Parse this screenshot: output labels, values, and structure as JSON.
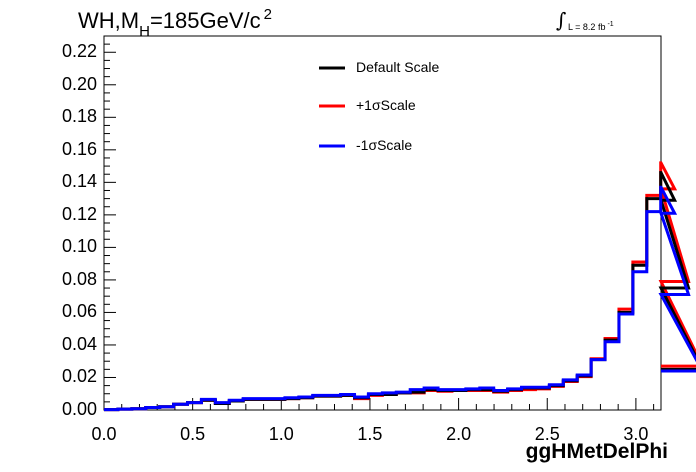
{
  "chart_data": {
    "type": "line",
    "title": "WH,M",
    "title_sub": "H",
    "title_rest": "=185GeV/c",
    "title_sup": "2",
    "lumi_symbol": "∫",
    "lumi_text": "L = 8.2 fb",
    "lumi_sup": "-1",
    "xlabel": "ggHMetDelPhi",
    "ylabel": "",
    "xlim": [
      0,
      3.1416
    ],
    "ylim": [
      0,
      0.23
    ],
    "bin_width": 0.0785,
    "x_ticks": [
      "0.0",
      "0.5",
      "1.0",
      "1.5",
      "2.0",
      "2.5",
      "3.0"
    ],
    "x_tick_values": [
      0.0,
      0.5,
      1.0,
      1.5,
      2.0,
      2.5,
      3.0
    ],
    "y_ticks": [
      "0.00",
      "0.02",
      "0.04",
      "0.06",
      "0.08",
      "0.10",
      "0.12",
      "0.14",
      "0.16",
      "0.18",
      "0.20",
      "0.22"
    ],
    "y_tick_values": [
      0.0,
      0.02,
      0.04,
      0.06,
      0.08,
      0.1,
      0.12,
      0.14,
      0.16,
      0.18,
      0.2,
      0.22
    ],
    "legend_placement": "top-center",
    "grid": false,
    "series": [
      {
        "name": "Default Scale",
        "color": "#000000",
        "values": [
          0.0002,
          0.0005,
          0.0008,
          0.0015,
          0.002,
          0.0035,
          0.0045,
          0.006,
          0.004,
          0.0055,
          0.0065,
          0.0065,
          0.0065,
          0.007,
          0.0075,
          0.0085,
          0.0085,
          0.009,
          0.0075,
          0.0095,
          0.0095,
          0.0105,
          0.011,
          0.0125,
          0.012,
          0.012,
          0.0125,
          0.0125,
          0.0115,
          0.0125,
          0.0135,
          0.0135,
          0.015,
          0.018,
          0.021,
          0.031,
          0.043,
          0.06,
          0.089,
          0.13,
          0.146,
          0.129,
          0.075,
          0.025
        ]
      },
      {
        "name": "+1σScale",
        "color": "#ff0000",
        "values": [
          0.0002,
          0.0005,
          0.0008,
          0.0015,
          0.002,
          0.0035,
          0.0045,
          0.006,
          0.004,
          0.0055,
          0.0065,
          0.0065,
          0.0065,
          0.007,
          0.0075,
          0.0085,
          0.0085,
          0.009,
          0.007,
          0.009,
          0.0095,
          0.0105,
          0.0105,
          0.012,
          0.0115,
          0.012,
          0.012,
          0.012,
          0.011,
          0.012,
          0.0125,
          0.013,
          0.0145,
          0.0175,
          0.0205,
          0.0315,
          0.044,
          0.062,
          0.091,
          0.132,
          0.152,
          0.136,
          0.079,
          0.027
        ]
      },
      {
        "name": "-1σScale",
        "color": "#0000ff",
        "values": [
          0.0002,
          0.0005,
          0.0008,
          0.0015,
          0.002,
          0.0035,
          0.0045,
          0.0065,
          0.0045,
          0.006,
          0.007,
          0.007,
          0.007,
          0.0075,
          0.008,
          0.009,
          0.009,
          0.0095,
          0.008,
          0.01,
          0.0105,
          0.011,
          0.0125,
          0.0135,
          0.0125,
          0.0125,
          0.013,
          0.0135,
          0.012,
          0.013,
          0.014,
          0.014,
          0.0155,
          0.0185,
          0.0215,
          0.031,
          0.042,
          0.059,
          0.085,
          0.122,
          0.137,
          0.121,
          0.071,
          0.024
        ]
      }
    ]
  }
}
